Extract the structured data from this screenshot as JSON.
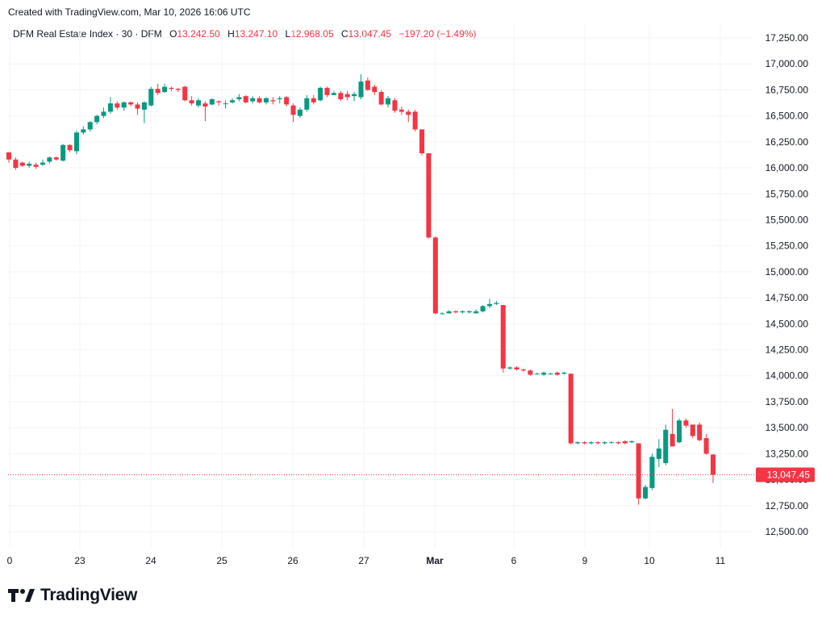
{
  "header": {
    "created": "Created with TradingView.com, Mar 10, 2026 16:06 UTC"
  },
  "legend": {
    "symbol": "DFM Real Estate Index · 30 · DFM",
    "o_label": "O",
    "o_value": "13,242.50",
    "h_label": "H",
    "h_value": "13,247.10",
    "l_label": "L",
    "l_value": "12,968.05",
    "c_label": "C",
    "c_value": "13,047.45",
    "change": "−197.20 (−1.49%)"
  },
  "footer": {
    "brand": "TradingView"
  },
  "colors": {
    "up": "#089981",
    "down": "#f23645",
    "grid": "#f0f3fa",
    "text": "#131722"
  },
  "chart_data": {
    "type": "candlestick",
    "y_range": [
      12400,
      17350
    ],
    "y_ticks": [
      "17,250.00",
      "17,000.00",
      "16,750.00",
      "16,500.00",
      "16,250.00",
      "16,000.00",
      "15,750.00",
      "15,500.00",
      "15,250.00",
      "15,000.00",
      "14,750.00",
      "14,500.00",
      "14,250.00",
      "14,000.00",
      "13,750.00",
      "13,500.00",
      "13,250.00",
      "13,000.00",
      "12,750.00",
      "12,500.00"
    ],
    "x_labels": [
      "0",
      "23",
      "24",
      "25",
      "26",
      "27",
      "Mar",
      "6",
      "9",
      "10",
      "11"
    ],
    "last_price": 13047.45,
    "last_price_label": "13,047.45",
    "candles": [
      [
        16150,
        16080,
        16150,
        16050
      ],
      [
        16080,
        16000,
        16100,
        15980
      ],
      [
        16050,
        16020,
        16060,
        16010
      ],
      [
        16020,
        16040,
        16060,
        16000
      ],
      [
        16030,
        16010,
        16050,
        15990
      ],
      [
        16030,
        16050,
        16080,
        16020
      ],
      [
        16060,
        16100,
        16110,
        16040
      ],
      [
        16100,
        16080,
        16110,
        16070
      ],
      [
        16070,
        16220,
        16230,
        16060
      ],
      [
        16220,
        16170,
        16230,
        16150
      ],
      [
        16160,
        16340,
        16360,
        16130
      ],
      [
        16340,
        16370,
        16400,
        16320
      ],
      [
        16370,
        16440,
        16450,
        16350
      ],
      [
        16440,
        16500,
        16510,
        16420
      ],
      [
        16500,
        16540,
        16580,
        16480
      ],
      [
        16540,
        16620,
        16680,
        16520
      ],
      [
        16620,
        16580,
        16640,
        16560
      ],
      [
        16580,
        16630,
        16640,
        16550
      ],
      [
        16630,
        16610,
        16640,
        16590
      ],
      [
        16610,
        16570,
        16630,
        16510
      ],
      [
        16560,
        16630,
        16640,
        16430
      ],
      [
        16600,
        16760,
        16780,
        16590
      ],
      [
        16760,
        16720,
        16810,
        16700
      ],
      [
        16730,
        16780,
        16810,
        16720
      ],
      [
        16770,
        16760,
        16780,
        16740
      ],
      [
        16760,
        16750,
        16770,
        16730
      ],
      [
        16780,
        16650,
        16790,
        16640
      ],
      [
        16650,
        16620,
        16690,
        16600
      ],
      [
        16600,
        16650,
        16670,
        16580
      ],
      [
        16620,
        16590,
        16640,
        16450
      ],
      [
        16610,
        16660,
        16670,
        16600
      ],
      [
        16640,
        16630,
        16650,
        16600
      ],
      [
        16620,
        16620,
        16650,
        16570
      ],
      [
        16630,
        16650,
        16670,
        16620
      ],
      [
        16660,
        16680,
        16710,
        16640
      ],
      [
        16690,
        16630,
        16700,
        16620
      ],
      [
        16640,
        16670,
        16690,
        16620
      ],
      [
        16670,
        16630,
        16690,
        16620
      ],
      [
        16630,
        16670,
        16680,
        16610
      ],
      [
        16650,
        16640,
        16680,
        16610
      ],
      [
        16660,
        16670,
        16690,
        16620
      ],
      [
        16680,
        16610,
        16690,
        16590
      ],
      [
        16600,
        16510,
        16620,
        16440
      ],
      [
        16500,
        16560,
        16580,
        16480
      ],
      [
        16560,
        16670,
        16700,
        16540
      ],
      [
        16670,
        16630,
        16700,
        16610
      ],
      [
        16650,
        16770,
        16780,
        16640
      ],
      [
        16770,
        16700,
        16780,
        16680
      ],
      [
        16700,
        16720,
        16740,
        16700
      ],
      [
        16720,
        16660,
        16740,
        16640
      ],
      [
        16710,
        16680,
        16740,
        16650
      ],
      [
        16690,
        16710,
        16730,
        16640
      ],
      [
        16680,
        16830,
        16900,
        16660
      ],
      [
        16840,
        16750,
        16870,
        16740
      ],
      [
        16780,
        16730,
        16800,
        16700
      ],
      [
        16730,
        16610,
        16750,
        16600
      ],
      [
        16610,
        16670,
        16690,
        16580
      ],
      [
        16650,
        16550,
        16670,
        16530
      ],
      [
        16560,
        16540,
        16590,
        16510
      ],
      [
        16540,
        16510,
        16560,
        16440
      ],
      [
        16540,
        16370,
        16560,
        16350
      ],
      [
        16370,
        16140,
        16370,
        16120
      ],
      [
        16140,
        15330,
        16140,
        15320
      ],
      [
        15330,
        14600,
        15340,
        14590
      ],
      [
        14600,
        14600,
        14610,
        14590
      ],
      [
        14600,
        14620,
        14630,
        14600
      ],
      [
        14620,
        14610,
        14630,
        14600
      ],
      [
        14610,
        14620,
        14630,
        14600
      ],
      [
        14610,
        14620,
        14630,
        14600
      ],
      [
        14600,
        14620,
        14640,
        14600
      ],
      [
        14620,
        14670,
        14680,
        14610
      ],
      [
        14670,
        14690,
        14740,
        14650
      ],
      [
        14690,
        14700,
        14720,
        14680
      ],
      [
        14680,
        14070,
        14680,
        14030
      ],
      [
        14070,
        14080,
        14090,
        14060
      ],
      [
        14080,
        14060,
        14090,
        14050
      ],
      [
        14060,
        14050,
        14070,
        14040
      ],
      [
        14050,
        14010,
        14060,
        14000
      ],
      [
        14020,
        14020,
        14030,
        14010
      ],
      [
        14010,
        14030,
        14040,
        14000
      ],
      [
        14020,
        14020,
        14030,
        14010
      ],
      [
        14030,
        14010,
        14040,
        14000
      ],
      [
        14020,
        14030,
        14040,
        14010
      ],
      [
        14020,
        13350,
        14020,
        13340
      ],
      [
        13350,
        13360,
        13370,
        13340
      ],
      [
        13360,
        13350,
        13370,
        13340
      ],
      [
        13350,
        13360,
        13370,
        13340
      ],
      [
        13360,
        13350,
        13370,
        13340
      ],
      [
        13350,
        13360,
        13370,
        13340
      ],
      [
        13360,
        13360,
        13370,
        13350
      ],
      [
        13360,
        13350,
        13370,
        13340
      ],
      [
        13370,
        13350,
        13380,
        13340
      ],
      [
        13360,
        13370,
        13380,
        13350
      ],
      [
        13350,
        12820,
        13350,
        12760
      ],
      [
        12820,
        12930,
        12950,
        12810
      ],
      [
        12920,
        13220,
        13250,
        12900
      ],
      [
        13200,
        13300,
        13390,
        13120
      ],
      [
        13160,
        13480,
        13530,
        13140
      ],
      [
        13440,
        13320,
        13680,
        13340
      ],
      [
        13360,
        13570,
        13590,
        13350
      ],
      [
        13570,
        13520,
        13590,
        13500
      ],
      [
        13530,
        13420,
        13530,
        13400
      ],
      [
        13530,
        13380,
        13550,
        13370
      ],
      [
        13400,
        13250,
        13440,
        13240
      ],
      [
        13242.5,
        13047.45,
        13247.1,
        12968.05
      ]
    ]
  }
}
